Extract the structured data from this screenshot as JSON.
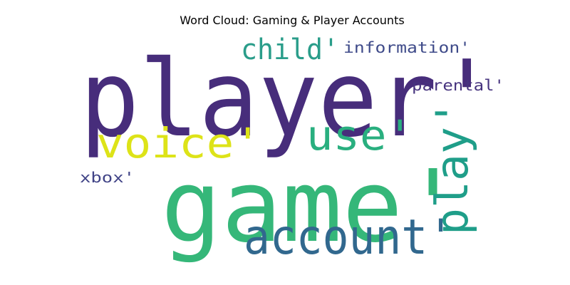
{
  "chart_data": {
    "type": "wordcloud",
    "title": "Word Cloud: Gaming & Player Accounts",
    "words": [
      {
        "text": "player'",
        "color": "#472d7b"
      },
      {
        "text": "game'",
        "color": "#35b779"
      },
      {
        "text": "account'",
        "color": "#31688e"
      },
      {
        "text": "voice'",
        "color": "#dde318"
      },
      {
        "text": "use'",
        "color": "#29af7f"
      },
      {
        "text": "play'",
        "color": "#1f9e89"
      },
      {
        "text": "child'",
        "color": "#2a9d8a"
      },
      {
        "text": "information'",
        "color": "#3e4a89"
      },
      {
        "text": "parental'",
        "color": "#46337e"
      },
      {
        "text": "xbox'",
        "color": "#414487"
      }
    ]
  }
}
